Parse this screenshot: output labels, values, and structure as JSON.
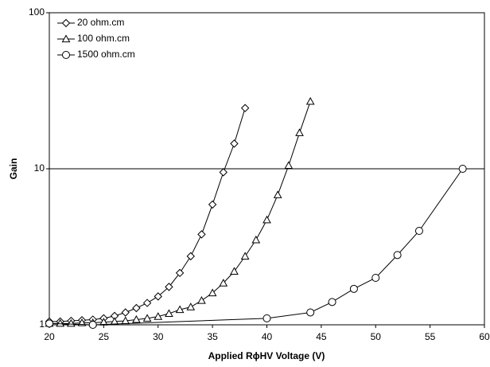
{
  "chart_data": {
    "type": "line",
    "x_label": "Applied RϕHV Voltage (V)",
    "y_label": "Gain",
    "xlim": [
      20,
      60
    ],
    "xticks": [
      20,
      25,
      30,
      35,
      40,
      45,
      50,
      55,
      60
    ],
    "ylim": [
      1,
      100
    ],
    "yticks": [
      1,
      10,
      100
    ],
    "log_y": true,
    "grid": true,
    "legend": "upper-left",
    "series": [
      {
        "name": "20 ohm.cm",
        "color": "#000000",
        "marker": "diamond",
        "x": [
          20,
          21,
          22,
          23,
          24,
          25,
          26,
          27,
          28,
          29,
          30,
          31,
          32,
          33,
          34,
          35,
          36,
          37,
          38
        ],
        "values": [
          1.05,
          1.05,
          1.06,
          1.07,
          1.08,
          1.1,
          1.14,
          1.2,
          1.28,
          1.38,
          1.52,
          1.75,
          2.15,
          2.75,
          3.8,
          5.9,
          9.5,
          14.5,
          24.5
        ]
      },
      {
        "name": "100 ohm.cm",
        "color": "#000000",
        "marker": "triangle",
        "x": [
          20,
          21,
          22,
          23,
          24,
          25,
          26,
          27,
          28,
          29,
          30,
          31,
          32,
          33,
          34,
          35,
          36,
          37,
          38,
          39,
          40,
          41,
          42,
          43,
          44
        ],
        "values": [
          1.02,
          1.02,
          1.02,
          1.03,
          1.03,
          1.04,
          1.05,
          1.06,
          1.08,
          1.1,
          1.13,
          1.18,
          1.25,
          1.3,
          1.43,
          1.6,
          1.85,
          2.2,
          2.75,
          3.5,
          4.7,
          6.8,
          10.5,
          17,
          27
        ]
      },
      {
        "name": "1500 ohm.cm",
        "color": "#000000",
        "marker": "circle",
        "x": [
          20,
          24,
          40,
          44,
          46,
          48,
          50,
          52,
          54,
          58
        ],
        "values": [
          1.02,
          1.0,
          1.1,
          1.2,
          1.4,
          1.7,
          2.0,
          2.8,
          4.0,
          10
        ]
      }
    ]
  }
}
